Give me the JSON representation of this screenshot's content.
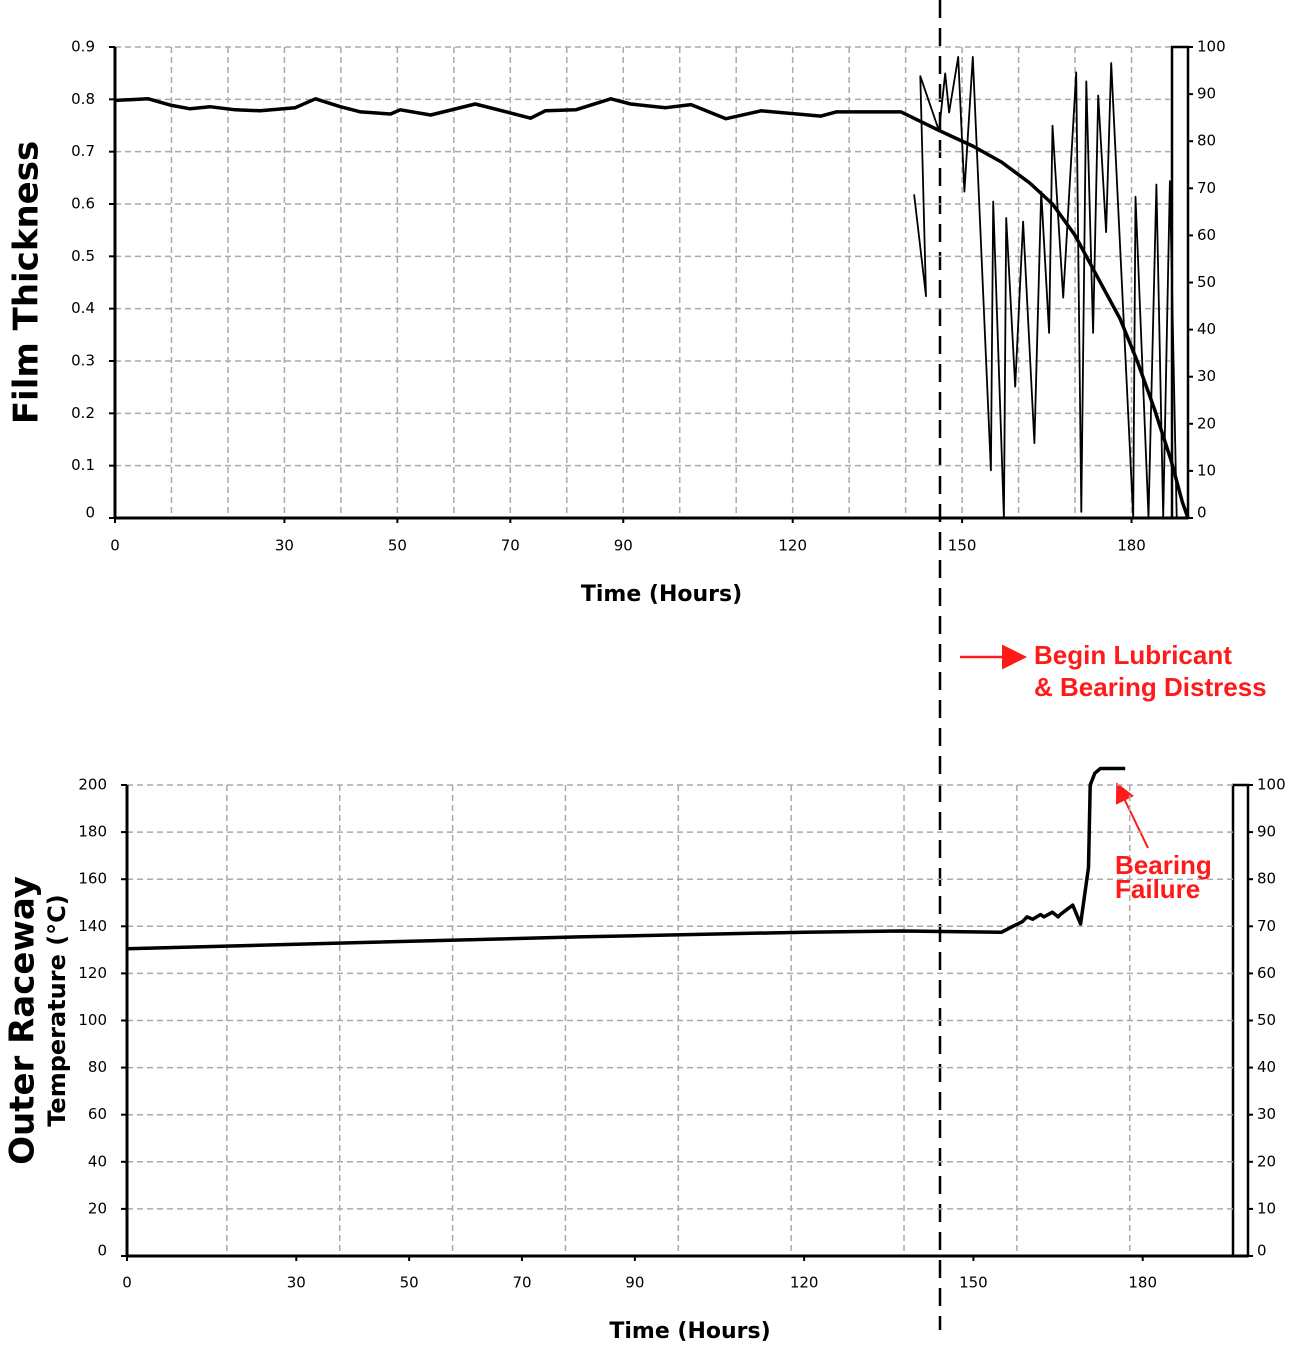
{
  "chart_data": [
    {
      "type": "line",
      "xlabel": "Time (Hours)",
      "ylabel": "Film Thickness",
      "xlim": [
        0,
        190
      ],
      "ylim": [
        0,
        0.9
      ],
      "y2lim": [
        0,
        100
      ],
      "xticks": [
        0,
        30,
        50,
        70,
        90,
        120,
        150,
        180
      ],
      "xgrid": [
        10,
        20,
        30,
        40,
        50,
        60,
        70,
        80,
        90,
        100,
        110,
        120,
        130,
        140,
        150,
        160,
        170,
        180
      ],
      "yticks": [
        0,
        0.1,
        0.2,
        0.3,
        0.4,
        0.5,
        0.6,
        0.7,
        0.8,
        0.9
      ],
      "y2ticks": [
        0,
        10,
        20,
        30,
        40,
        50,
        60,
        70,
        80,
        90,
        100
      ],
      "grid": true,
      "annotation_lines": [
        "Begin Lubricant",
        "& Bearing Distress"
      ],
      "series": [
        {
          "color": "#000000",
          "width": 3.5,
          "x": [
            0,
            5.9,
            9.8,
            13.3,
            16.8,
            21.3,
            25.7,
            31.9,
            35.5,
            39.9,
            43.5,
            48.8,
            50.5,
            55.9,
            63.8,
            70.0,
            73.6,
            76.2,
            81.6,
            87.8,
            91.3,
            97.5,
            102.0,
            108.2,
            114.4,
            125.0,
            127.7,
            139.2,
            146,
            152,
            157,
            162,
            166,
            170,
            174,
            178,
            181,
            184,
            187,
            189,
            190
          ],
          "values": [
            0.798,
            0.801,
            0.789,
            0.782,
            0.786,
            0.78,
            0.778,
            0.784,
            0.801,
            0.786,
            0.776,
            0.772,
            0.78,
            0.77,
            0.791,
            0.774,
            0.764,
            0.778,
            0.78,
            0.801,
            0.791,
            0.784,
            0.79,
            0.763,
            0.778,
            0.768,
            0.776,
            0.776,
            0.74,
            0.71,
            0.68,
            0.64,
            0.6,
            0.54,
            0.46,
            0.38,
            0.3,
            0.21,
            0.11,
            0.03,
            0
          ]
        },
        {
          "color": "#000000",
          "width": 1.8,
          "axis": "y2",
          "x": [
            141.5,
            143.6,
            142.6,
            145.9,
            147.0,
            147.7,
            149.3,
            150.4,
            151.9,
            155.1,
            155.5,
            157.4,
            157.8,
            159.4,
            160.8,
            162.8,
            164.0,
            165.4,
            166.0,
            167.9,
            170.2,
            171.1,
            172.0,
            173.2,
            174.1,
            175.5,
            176.4,
            180.3,
            180.7,
            183.0,
            184.4,
            185.6,
            186.8,
            188.0
          ],
          "values": [
            68.7,
            47.1,
            93.8,
            82.2,
            94.4,
            86.1,
            97.9,
            69.3,
            97.9,
            10.1,
            67.2,
            0,
            63.7,
            27.9,
            62.9,
            15.9,
            69.3,
            39.3,
            83.3,
            46.8,
            94.6,
            1.3,
            92.7,
            39.3,
            89.7,
            60.7,
            96.6,
            0.2,
            68.2,
            0.2,
            70.8,
            0.2,
            71.5,
            0.2
          ]
        }
      ]
    },
    {
      "type": "line",
      "xlabel": "Time (Hours)",
      "ylabel": "Outer Raceway",
      "ylabel_sub": "Temperature (°C)",
      "xlim": [
        0,
        196
      ],
      "ylim": [
        0,
        200
      ],
      "y2lim": [
        0,
        100
      ],
      "xticks": [
        0,
        30,
        50,
        70,
        90,
        120,
        150,
        180
      ],
      "xgrid": [
        17.7,
        37.7,
        57.7,
        77.7,
        97.7,
        117.7,
        137.7,
        157.7,
        177.7
      ],
      "yticks": [
        0,
        20,
        40,
        60,
        80,
        100,
        120,
        140,
        160,
        180,
        200
      ],
      "y2ticks": [
        0,
        10,
        20,
        30,
        40,
        50,
        60,
        70,
        80,
        90,
        100
      ],
      "grid": true,
      "annotation_lines": [
        "Bearing",
        "Failure"
      ],
      "series": [
        {
          "color": "#000000",
          "width": 3.5,
          "x": [
            0,
            40,
            80,
            120,
            137.5,
            155,
            157,
            158.7,
            159.5,
            160.5,
            161.9,
            162.5,
            164,
            165,
            165.4,
            166.5,
            167.6,
            169,
            170.4,
            170.7,
            171.5,
            172.5,
            176.9
          ],
          "values": [
            130.5,
            133,
            135.5,
            137.5,
            138,
            137.5,
            140,
            142,
            144,
            143,
            145,
            144,
            146,
            144,
            145,
            147,
            149,
            141,
            165,
            200,
            205,
            207,
            207
          ]
        }
      ]
    }
  ]
}
